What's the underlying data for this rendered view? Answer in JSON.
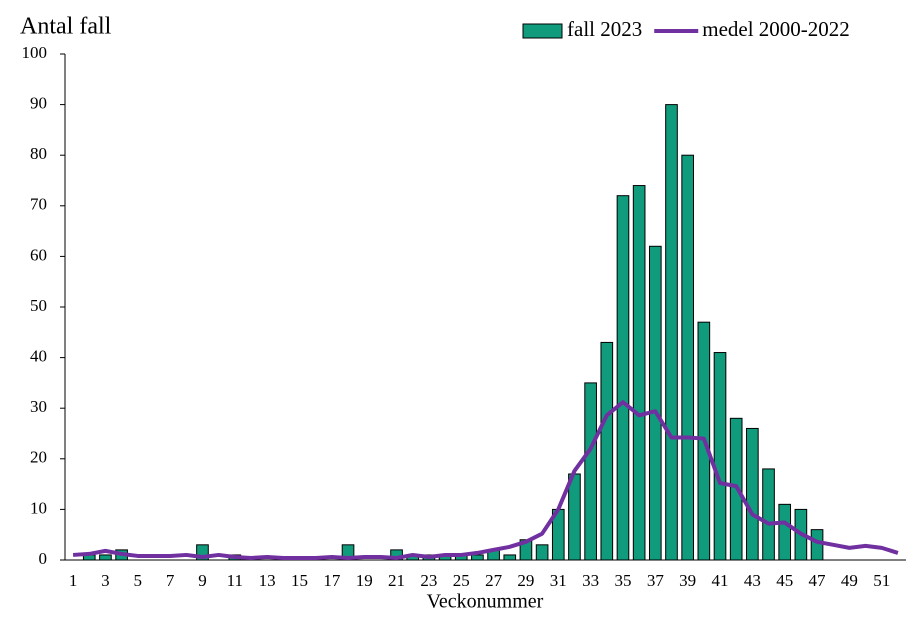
{
  "chart_data": {
    "type": "bar",
    "y_label": "Antal fall",
    "x_label": "Veckonummer",
    "categories": [
      "1",
      null,
      "3",
      null,
      "5",
      null,
      "7",
      null,
      "9",
      null,
      "11",
      null,
      "13",
      null,
      "15",
      null,
      "17",
      null,
      "19",
      null,
      "21",
      null,
      "23",
      null,
      "25",
      null,
      "27",
      null,
      "29",
      null,
      "31",
      null,
      "33",
      null,
      "35",
      null,
      "37",
      null,
      "39",
      null,
      "41",
      null,
      "43",
      null,
      "45",
      null,
      "47",
      null,
      "49",
      null,
      "51",
      null
    ],
    "series": [
      {
        "name": "fall 2023",
        "type": "bar",
        "color": "#119b7d",
        "values": [
          0,
          1,
          1,
          2,
          0,
          0,
          0,
          0,
          3,
          0,
          1,
          0,
          0,
          0,
          0,
          0,
          0,
          3,
          0,
          0,
          2,
          1,
          1,
          1,
          1,
          1,
          2,
          1,
          4,
          3,
          10,
          17,
          35,
          43,
          72,
          74,
          62,
          90,
          80,
          47,
          41,
          28,
          26,
          18,
          11,
          10,
          6,
          null,
          null,
          null,
          null,
          null
        ]
      },
      {
        "name": "medel 2000-2022",
        "type": "line",
        "color": "#7030a0",
        "values": [
          1,
          1.2,
          1.8,
          1.2,
          0.8,
          0.8,
          0.8,
          1,
          0.6,
          1,
          0.6,
          0.4,
          0.6,
          0.4,
          0.4,
          0.4,
          0.6,
          0.4,
          0.6,
          0.6,
          0.4,
          1,
          0.6,
          1,
          1,
          1.4,
          2,
          2.6,
          3.6,
          5.2,
          10,
          17.6,
          22,
          28.6,
          31.2,
          28.6,
          29.4,
          24.2,
          24.2,
          24,
          15.2,
          14.6,
          9,
          7.2,
          7.4,
          5.2,
          3.6,
          3,
          2.4,
          2.8,
          2.4,
          1.4
        ]
      }
    ],
    "ylim": [
      0,
      100
    ],
    "yticks": [
      0,
      10,
      20,
      30,
      40,
      50,
      60,
      70,
      80,
      90,
      100
    ],
    "grid": false,
    "legend": "top-right"
  }
}
